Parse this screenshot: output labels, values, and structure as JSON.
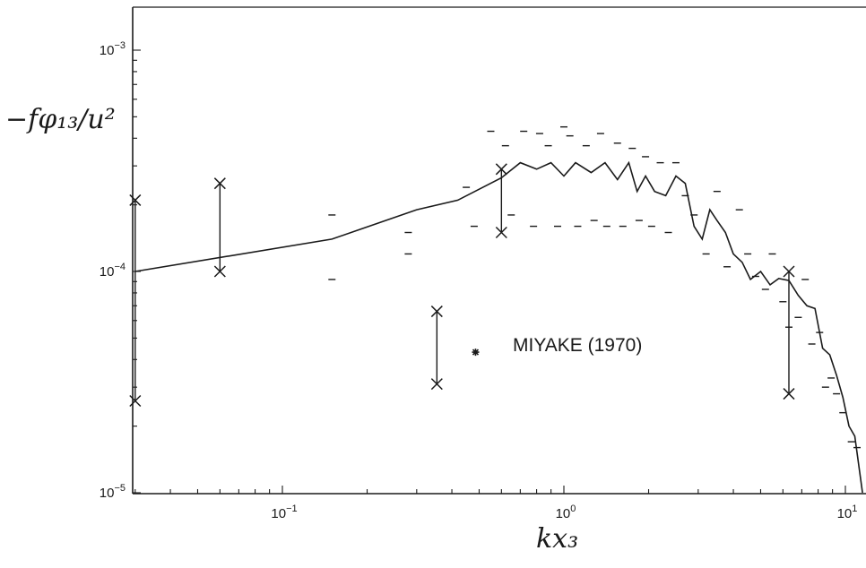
{
  "chart_data": {
    "type": "line",
    "xlabel": "kx₃",
    "ylabel": "−fφ₁₃/u²",
    "x_scale": "log",
    "y_scale": "log",
    "xlim": [
      0.03,
      11.5
    ],
    "ylim": [
      1e-05,
      0.0016
    ],
    "x_ticks": [
      {
        "value": 0.1,
        "base": "10",
        "exp": "−1"
      },
      {
        "value": 1,
        "base": "10",
        "exp": "0"
      },
      {
        "value": 10,
        "base": "10",
        "exp": "1"
      }
    ],
    "y_ticks": [
      {
        "value": 0.001,
        "base": "10",
        "exp": "−3"
      },
      {
        "value": 0.0001,
        "base": "10",
        "exp": "−4"
      },
      {
        "value": 1e-05,
        "base": "10",
        "exp": "−5"
      }
    ],
    "grid": false,
    "series": [
      {
        "style": "line",
        "x": [
          0.03,
          0.15,
          0.3,
          0.42,
          0.6,
          0.7,
          0.8,
          0.9,
          1.0,
          1.1,
          1.25,
          1.4,
          1.55,
          1.7,
          1.82,
          1.95,
          2.1,
          2.3,
          2.5,
          2.7,
          2.9,
          3.1,
          3.3,
          3.5,
          3.75,
          4.0,
          4.3,
          4.6,
          5.0,
          5.4,
          5.8,
          6.3,
          6.8,
          7.3,
          7.8,
          8.3,
          8.8,
          9.3,
          9.8,
          10.3,
          10.8,
          11.5
        ],
        "y": [
          0.0001,
          0.00014,
          0.00019,
          0.00021,
          0.000265,
          0.00031,
          0.00029,
          0.00031,
          0.00027,
          0.00031,
          0.00028,
          0.00031,
          0.00026,
          0.00031,
          0.00023,
          0.00027,
          0.00023,
          0.00022,
          0.00027,
          0.00025,
          0.00016,
          0.00014,
          0.00019,
          0.00017,
          0.00015,
          0.00012,
          0.00011,
          9.2e-05,
          0.0001,
          8.7e-05,
          9.3e-05,
          9.1e-05,
          7.8e-05,
          7e-05,
          6.8e-05,
          4.5e-05,
          4.2e-05,
          3.4e-05,
          2.7e-05,
          2e-05,
          1.8e-05,
          1e-05
        ]
      },
      {
        "style": "scatter-dash",
        "x": [
          0.15,
          0.15,
          0.28,
          0.28,
          0.45,
          0.48,
          0.55,
          0.62,
          0.65,
          0.72,
          0.78,
          0.82,
          0.88,
          0.95,
          1.0,
          1.05,
          1.12,
          1.2,
          1.28,
          1.35,
          1.42,
          1.55,
          1.62,
          1.75,
          1.85,
          1.95,
          2.05,
          2.2,
          2.35,
          2.5,
          2.7,
          2.9,
          3.2,
          3.5,
          3.8,
          4.2,
          4.5,
          4.8,
          5.2,
          5.5,
          6.0,
          6.3,
          6.8,
          7.2,
          7.6,
          8.1,
          8.5,
          8.9,
          9.3,
          9.8,
          10.5,
          11.0
        ],
        "y": [
          0.00018,
          9.2e-05,
          0.00015,
          0.00012,
          0.00024,
          0.00016,
          0.00043,
          0.00037,
          0.00018,
          0.00043,
          0.00016,
          0.00042,
          0.00037,
          0.00016,
          0.00045,
          0.00041,
          0.00016,
          0.00037,
          0.00017,
          0.00042,
          0.00016,
          0.00038,
          0.00016,
          0.00036,
          0.00017,
          0.00033,
          0.00016,
          0.00031,
          0.00015,
          0.00031,
          0.00022,
          0.00018,
          0.00012,
          0.00023,
          0.000105,
          0.00019,
          0.00012,
          9.5e-05,
          8.3e-05,
          0.00012,
          7.3e-05,
          5.6e-05,
          6.2e-05,
          9.2e-05,
          4.7e-05,
          5.3e-05,
          3e-05,
          3.3e-05,
          2.8e-05,
          2.3e-05,
          1.7e-05,
          1.6e-05
        ]
      }
    ],
    "error_bars": [
      {
        "x": 0.03,
        "y_low": 2.6e-05,
        "y_high": 0.00021,
        "note": "left axis"
      },
      {
        "x": 0.06,
        "y_low": 0.0001,
        "y_high": 0.00025
      },
      {
        "x": 0.6,
        "y_low": 0.00015,
        "y_high": 0.00029
      },
      {
        "x": 6.3,
        "y_low": 2.8e-05,
        "y_high": 0.0001
      }
    ],
    "annotations": [
      {
        "text": "MIYAKE (1970)",
        "marker": "asterisk",
        "x": 0.5,
        "y": 4.4e-05,
        "errorbar": {
          "x": 0.6,
          "y_low": 3.1e-05,
          "y_high": 6.6e-05
        }
      }
    ]
  }
}
